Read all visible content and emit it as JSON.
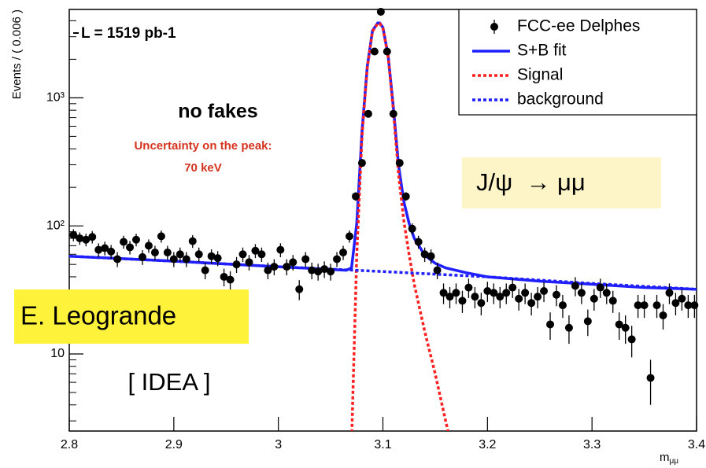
{
  "chart_data": {
    "type": "scatter",
    "y_label": "Events / ( 0.006 )",
    "x_label": {
      "main": "m",
      "sub": "μμ"
    },
    "xlim": [
      2.8,
      3.4
    ],
    "xticks": [
      2.8,
      2.9,
      3,
      3.1,
      3.2,
      3.3,
      3.4
    ],
    "ylim": [
      2.5,
      4900
    ],
    "log_y": true,
    "yticks": [
      10,
      {
        "value": 100,
        "label": "10²"
      },
      {
        "value": 1000,
        "label": "10³"
      }
    ],
    "yminorticks": [
      3,
      4,
      5,
      6,
      7,
      8,
      9,
      20,
      30,
      40,
      50,
      60,
      70,
      80,
      90,
      200,
      300,
      400,
      500,
      600,
      700,
      800,
      900,
      2000,
      3000,
      4000
    ],
    "legend_position": "top-right",
    "series": [
      {
        "name": "FCC-ee Delphes",
        "kind": "errorbar",
        "color": "#000000",
        "x": [
          2.804,
          2.81,
          2.816,
          2.822,
          2.828,
          2.834,
          2.84,
          2.846,
          2.852,
          2.858,
          2.864,
          2.87,
          2.876,
          2.882,
          2.888,
          2.894,
          2.9,
          2.906,
          2.912,
          2.918,
          2.924,
          2.93,
          2.936,
          2.942,
          2.948,
          2.954,
          2.96,
          2.966,
          2.972,
          2.978,
          2.984,
          2.99,
          2.996,
          3.002,
          3.008,
          3.014,
          3.02,
          3.026,
          3.032,
          3.038,
          3.044,
          3.05,
          3.056,
          3.062,
          3.068,
          3.074,
          3.08,
          3.086,
          3.092,
          3.098,
          3.104,
          3.11,
          3.116,
          3.122,
          3.128,
          3.134,
          3.14,
          3.146,
          3.152,
          3.158,
          3.164,
          3.17,
          3.176,
          3.182,
          3.188,
          3.194,
          3.2,
          3.206,
          3.212,
          3.218,
          3.224,
          3.23,
          3.236,
          3.242,
          3.248,
          3.254,
          3.26,
          3.266,
          3.272,
          3.278,
          3.284,
          3.29,
          3.296,
          3.302,
          3.308,
          3.314,
          3.32,
          3.326,
          3.332,
          3.338,
          3.344,
          3.35,
          3.356,
          3.362,
          3.368,
          3.374,
          3.38,
          3.386,
          3.392,
          3.398
        ],
        "values": [
          85,
          80,
          78,
          82,
          65,
          67,
          63,
          55,
          75,
          68,
          78,
          57,
          70,
          62,
          83,
          62,
          55,
          60,
          55,
          76,
          60,
          45,
          58,
          56,
          40,
          38,
          50,
          60,
          52,
          64,
          60,
          45,
          48,
          65,
          48,
          52,
          32,
          55,
          45,
          44,
          46,
          44,
          55,
          62,
          83,
          170,
          310,
          750,
          2300,
          4700,
          2300,
          750,
          310,
          170,
          95,
          75,
          60,
          58,
          45,
          30,
          28,
          30,
          26,
          33,
          28,
          25,
          31,
          30,
          28,
          30,
          33,
          27,
          30,
          25,
          28,
          31,
          17,
          29,
          24,
          16,
          34,
          30,
          18,
          27,
          33,
          30,
          26,
          17,
          16,
          13,
          24,
          24,
          6.5,
          24,
          20,
          30,
          25,
          27,
          24,
          24
        ],
        "errors": [
          9.2,
          8.9,
          8.8,
          9.1,
          8.1,
          8.2,
          7.9,
          7.4,
          8.7,
          8.2,
          8.8,
          7.5,
          8.4,
          7.9,
          9.1,
          7.9,
          7.4,
          7.7,
          7.4,
          8.7,
          7.7,
          6.7,
          7.6,
          7.5,
          6.3,
          6.2,
          7.1,
          7.7,
          7.2,
          8,
          7.7,
          6.7,
          6.9,
          8.1,
          6.9,
          7.2,
          5.7,
          7.4,
          6.7,
          6.6,
          6.8,
          6.6,
          7.4,
          7.9,
          9.1,
          13,
          17.6,
          27.4,
          48,
          68.6,
          48,
          27.4,
          17.6,
          13,
          9.7,
          8.7,
          7.7,
          7.6,
          6.7,
          5.5,
          5.3,
          5.5,
          5.1,
          5.7,
          5.3,
          5,
          5.6,
          5.5,
          5.3,
          5.5,
          5.7,
          5.2,
          5.5,
          5,
          5.3,
          5.6,
          4.1,
          5.4,
          4.9,
          4,
          5.8,
          5.5,
          4.2,
          5.2,
          5.7,
          5.5,
          5.1,
          4.1,
          4,
          3.6,
          4.9,
          4.9,
          2.5,
          4.9,
          4.5,
          5.5,
          5,
          5.2,
          4.9,
          4.9
        ]
      },
      {
        "name": "S+B fit",
        "kind": "line",
        "color": "#1f1fff",
        "dash": false,
        "x": [
          2.8,
          2.9,
          3.0,
          3.065,
          3.07,
          3.075,
          3.08,
          3.085,
          3.09,
          3.095,
          3.097,
          3.1,
          3.105,
          3.11,
          3.115,
          3.12,
          3.125,
          3.13,
          3.14,
          3.15,
          3.16,
          3.18,
          3.2,
          3.25,
          3.3,
          3.35,
          3.4
        ],
        "values": [
          58,
          53,
          48,
          45,
          47,
          105,
          545,
          1745,
          3345,
          3840,
          3840,
          3545,
          2145,
          845,
          295,
          155,
          105,
          80,
          59,
          51,
          47,
          43,
          40,
          37,
          35,
          33,
          32
        ]
      },
      {
        "name": "Signal",
        "kind": "line",
        "color": "#ff2020",
        "dash": true,
        "x": [
          3.07,
          3.075,
          3.08,
          3.085,
          3.09,
          3.095,
          3.097,
          3.1,
          3.105,
          3.11,
          3.115,
          3.12,
          3.125,
          3.13,
          3.14,
          3.15,
          3.16,
          3.165
        ],
        "values": [
          2,
          60,
          500,
          1700,
          3300,
          3800,
          3800,
          3500,
          2100,
          800,
          250,
          110,
          60,
          35,
          15,
          7,
          3,
          2
        ]
      },
      {
        "name": "background",
        "kind": "line",
        "color": "#1f1fff",
        "dash": true,
        "x": [
          2.8,
          2.9,
          3.0,
          3.1,
          3.2,
          3.3,
          3.4
        ],
        "values": [
          58,
          53,
          48,
          44,
          40,
          35.5,
          32
        ]
      }
    ],
    "annotations": {
      "luminosity": "L = 1519 pb-1",
      "fakes": "no fakes",
      "uncertainty_1": "Uncertainty on the peak:",
      "uncertainty_2": "70 keV",
      "process": "J/ψ  → μμ",
      "author": "E. Leogrande",
      "detector": "[ IDEA ]"
    }
  }
}
